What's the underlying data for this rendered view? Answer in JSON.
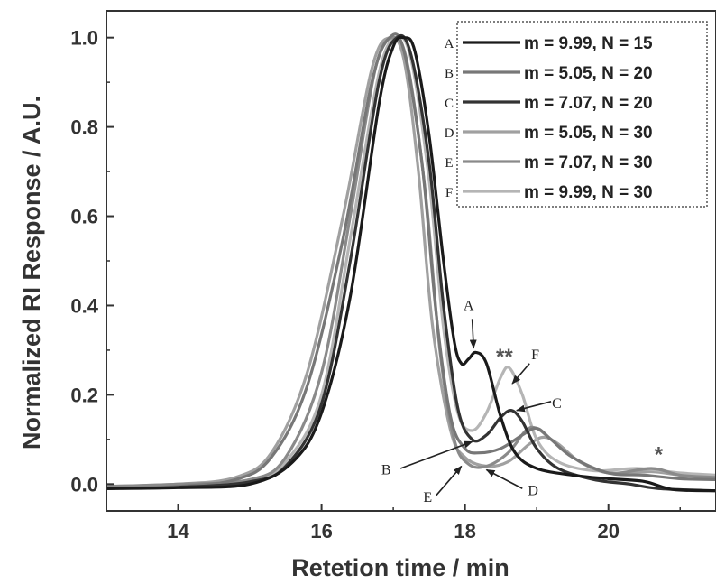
{
  "chart_data": {
    "type": "line",
    "title": "",
    "xlabel": "Retetion time / min",
    "ylabel": "Normalized RI Response / A.U.",
    "xlim": [
      13,
      21.5
    ],
    "ylim": [
      -0.06,
      1.06
    ],
    "xticks": [
      "14",
      "16",
      "18",
      "20"
    ],
    "xtick_values": [
      14,
      16,
      18,
      20
    ],
    "yticks": [
      "0.0",
      "0.2",
      "0.4",
      "0.6",
      "0.8",
      "1.0"
    ],
    "ytick_values": [
      0,
      0.2,
      0.4,
      0.6,
      0.8,
      1.0
    ],
    "grid": false,
    "legend_position": "top-right",
    "series": [
      {
        "key": "A",
        "name": "m = 9.99, N = 15",
        "color": "#1a1a1a",
        "points": [
          [
            13,
            -0.01
          ],
          [
            14,
            -0.008
          ],
          [
            15,
            0.0
          ],
          [
            15.6,
            0.05
          ],
          [
            16,
            0.16
          ],
          [
            16.4,
            0.42
          ],
          [
            16.8,
            0.85
          ],
          [
            17.0,
            0.98
          ],
          [
            17.15,
            1.0
          ],
          [
            17.3,
            0.97
          ],
          [
            17.5,
            0.78
          ],
          [
            17.7,
            0.5
          ],
          [
            17.85,
            0.32
          ],
          [
            17.95,
            0.27
          ],
          [
            18.05,
            0.28
          ],
          [
            18.15,
            0.295
          ],
          [
            18.3,
            0.27
          ],
          [
            18.5,
            0.15
          ],
          [
            18.7,
            0.07
          ],
          [
            19.0,
            0.035
          ],
          [
            19.5,
            0.02
          ],
          [
            20.0,
            0.012
          ],
          [
            20.5,
            0.006
          ],
          [
            20.9,
            -0.012
          ],
          [
            21.5,
            -0.015
          ]
        ]
      },
      {
        "key": "B",
        "name": "m = 5.05, N = 20",
        "color": "#777777",
        "points": [
          [
            13,
            -0.01
          ],
          [
            14,
            -0.005
          ],
          [
            14.8,
            0.01
          ],
          [
            15.3,
            0.06
          ],
          [
            15.8,
            0.22
          ],
          [
            16.3,
            0.55
          ],
          [
            16.7,
            0.9
          ],
          [
            16.95,
            1.0
          ],
          [
            17.15,
            0.97
          ],
          [
            17.4,
            0.72
          ],
          [
            17.6,
            0.38
          ],
          [
            17.8,
            0.15
          ],
          [
            18.0,
            0.08
          ],
          [
            18.2,
            0.07
          ],
          [
            18.5,
            0.08
          ],
          [
            18.8,
            0.11
          ],
          [
            19.0,
            0.125
          ],
          [
            19.2,
            0.1
          ],
          [
            19.5,
            0.06
          ],
          [
            20.0,
            0.025
          ],
          [
            20.5,
            0.02
          ],
          [
            21.0,
            0.012
          ],
          [
            21.5,
            0.01
          ]
        ]
      },
      {
        "key": "C",
        "name": "m = 7.07, N = 20",
        "color": "#333333",
        "points": [
          [
            13,
            -0.01
          ],
          [
            14,
            -0.007
          ],
          [
            15,
            0.005
          ],
          [
            15.5,
            0.04
          ],
          [
            16.0,
            0.18
          ],
          [
            16.4,
            0.5
          ],
          [
            16.8,
            0.9
          ],
          [
            17.05,
            1.0
          ],
          [
            17.25,
            0.96
          ],
          [
            17.5,
            0.72
          ],
          [
            17.7,
            0.4
          ],
          [
            17.9,
            0.17
          ],
          [
            18.1,
            0.1
          ],
          [
            18.3,
            0.11
          ],
          [
            18.5,
            0.15
          ],
          [
            18.65,
            0.165
          ],
          [
            18.8,
            0.14
          ],
          [
            19.0,
            0.08
          ],
          [
            19.3,
            0.035
          ],
          [
            19.8,
            0.01
          ],
          [
            20.3,
            0.0
          ],
          [
            20.7,
            -0.01
          ],
          [
            21.5,
            -0.015
          ]
        ]
      },
      {
        "key": "D",
        "name": "m = 5.05, N = 30",
        "color": "#a0a0a0",
        "points": [
          [
            13,
            -0.005
          ],
          [
            14,
            0.0
          ],
          [
            14.8,
            0.015
          ],
          [
            15.3,
            0.07
          ],
          [
            15.8,
            0.25
          ],
          [
            16.3,
            0.6
          ],
          [
            16.7,
            0.93
          ],
          [
            16.95,
            1.0
          ],
          [
            17.15,
            0.95
          ],
          [
            17.35,
            0.7
          ],
          [
            17.55,
            0.35
          ],
          [
            17.8,
            0.12
          ],
          [
            18.0,
            0.06
          ],
          [
            18.3,
            0.04
          ],
          [
            18.6,
            0.05
          ],
          [
            18.9,
            0.09
          ],
          [
            19.1,
            0.105
          ],
          [
            19.3,
            0.09
          ],
          [
            19.6,
            0.05
          ],
          [
            20.0,
            0.025
          ],
          [
            20.6,
            0.028
          ],
          [
            21.0,
            0.02
          ],
          [
            21.5,
            0.015
          ]
        ]
      },
      {
        "key": "E",
        "name": "m = 7.07, N = 30",
        "color": "#8a8a8a",
        "points": [
          [
            13,
            -0.005
          ],
          [
            14,
            0.0
          ],
          [
            15,
            0.01
          ],
          [
            15.5,
            0.06
          ],
          [
            16.0,
            0.25
          ],
          [
            16.4,
            0.6
          ],
          [
            16.75,
            0.93
          ],
          [
            17.0,
            1.0
          ],
          [
            17.2,
            0.94
          ],
          [
            17.45,
            0.65
          ],
          [
            17.65,
            0.3
          ],
          [
            17.85,
            0.1
          ],
          [
            18.05,
            0.045
          ],
          [
            18.3,
            0.04
          ],
          [
            18.6,
            0.07
          ],
          [
            18.85,
            0.12
          ],
          [
            19.0,
            0.125
          ],
          [
            19.2,
            0.1
          ],
          [
            19.5,
            0.06
          ],
          [
            20.0,
            0.025
          ],
          [
            20.6,
            0.035
          ],
          [
            21.0,
            0.02
          ],
          [
            21.5,
            0.015
          ]
        ]
      },
      {
        "key": "F",
        "name": "m = 9.99, N = 30",
        "color": "#b5b5b5",
        "points": [
          [
            13,
            -0.005
          ],
          [
            14,
            0.0
          ],
          [
            15,
            0.01
          ],
          [
            15.5,
            0.05
          ],
          [
            16.0,
            0.2
          ],
          [
            16.4,
            0.55
          ],
          [
            16.8,
            0.92
          ],
          [
            17.05,
            1.0
          ],
          [
            17.25,
            0.95
          ],
          [
            17.5,
            0.68
          ],
          [
            17.7,
            0.35
          ],
          [
            17.9,
            0.16
          ],
          [
            18.1,
            0.12
          ],
          [
            18.3,
            0.16
          ],
          [
            18.5,
            0.24
          ],
          [
            18.62,
            0.26
          ],
          [
            18.8,
            0.2
          ],
          [
            19.0,
            0.1
          ],
          [
            19.3,
            0.05
          ],
          [
            19.8,
            0.03
          ],
          [
            20.4,
            0.035
          ],
          [
            21.0,
            0.025
          ],
          [
            21.5,
            0.02
          ]
        ]
      }
    ],
    "annotations": [
      {
        "text": "A",
        "x": 18.05,
        "y": 0.39
      },
      {
        "text": "F",
        "x": 18.98,
        "y": 0.28
      },
      {
        "text": "C",
        "x": 19.28,
        "y": 0.17
      },
      {
        "text": "B",
        "x": 16.9,
        "y": 0.022
      },
      {
        "text": "E",
        "x": 17.48,
        "y": -0.04
      },
      {
        "text": "D",
        "x": 18.95,
        "y": -0.025
      },
      {
        "text": "**",
        "x": 18.55,
        "y": 0.27,
        "style": "star"
      },
      {
        "text": "*",
        "x": 20.7,
        "y": 0.05,
        "style": "star"
      }
    ],
    "arrows": [
      {
        "from": [
          18.1,
          0.37
        ],
        "to": [
          18.12,
          0.305
        ]
      },
      {
        "from": [
          18.9,
          0.27
        ],
        "to": [
          18.66,
          0.225
        ]
      },
      {
        "from": [
          19.2,
          0.185
        ],
        "to": [
          18.72,
          0.165
        ]
      },
      {
        "from": [
          17.1,
          0.035
        ],
        "to": [
          18.1,
          0.095
        ]
      },
      {
        "from": [
          17.6,
          -0.025
        ],
        "to": [
          17.95,
          0.04
        ]
      },
      {
        "from": [
          18.8,
          -0.01
        ],
        "to": [
          18.3,
          0.032
        ]
      }
    ]
  }
}
